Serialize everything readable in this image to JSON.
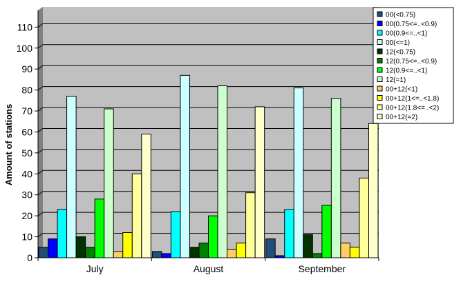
{
  "chart_data": {
    "type": "bar",
    "title": "",
    "xlabel": "",
    "ylabel": "Amount of stations",
    "ylim": [
      0,
      118
    ],
    "yticks": [
      0,
      10,
      20,
      30,
      40,
      50,
      60,
      70,
      80,
      90,
      100,
      110
    ],
    "grid": true,
    "legend_position": "top-right",
    "categories": [
      "July",
      "August",
      "September"
    ],
    "series": [
      {
        "name": "00(<0.75)",
        "color": "#1f4e79",
        "values": [
          5,
          3,
          9
        ]
      },
      {
        "name": "00(0.75<=..<0.9)",
        "color": "#0000ff",
        "values": [
          9,
          2,
          1
        ]
      },
      {
        "name": "00(0.9<=..<1)",
        "color": "#00ffff",
        "values": [
          23,
          22,
          23
        ]
      },
      {
        "name": "00(<=1)",
        "color": "#ccffff",
        "values": [
          77,
          87,
          81
        ]
      },
      {
        "name": "12(<0.75)",
        "color": "#003300",
        "values": [
          10,
          5,
          11
        ]
      },
      {
        "name": "12(0.75<=..<0.9)",
        "color": "#008000",
        "values": [
          5,
          7,
          2
        ]
      },
      {
        "name": "12(0.9<=..<1)",
        "color": "#00ff00",
        "values": [
          28,
          20,
          25
        ]
      },
      {
        "name": "12(=1)",
        "color": "#ccffcc",
        "values": [
          71,
          82,
          76
        ]
      },
      {
        "name": "00+12(<1)",
        "color": "#ffcc66",
        "values": [
          3,
          4,
          7
        ]
      },
      {
        "name": "00+12(1<=..<1.8)",
        "color": "#ffff00",
        "values": [
          12,
          7,
          5
        ]
      },
      {
        "name": "00+12(1.8<=..<2)",
        "color": "#ffff99",
        "values": [
          40,
          31,
          38
        ]
      },
      {
        "name": "00+12(=2)",
        "color": "#ffffcc",
        "values": [
          59,
          72,
          64
        ]
      }
    ]
  },
  "colors": {
    "plot_background": "#c0c0c0",
    "wall": "#808080",
    "gridline": "#000000"
  }
}
